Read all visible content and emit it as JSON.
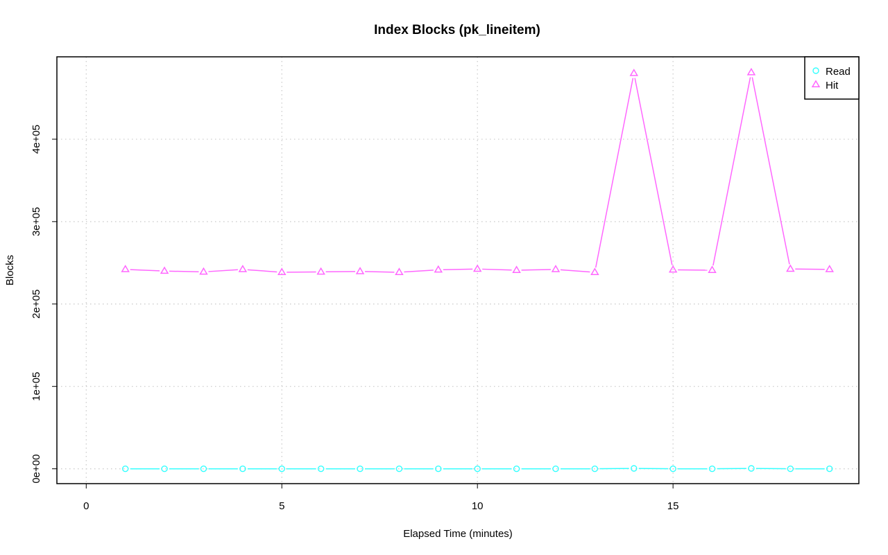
{
  "chart_data": {
    "type": "line",
    "title": "Index Blocks (pk_lineitem)",
    "xlabel": "Elapsed Time (minutes)",
    "ylabel": "Blocks",
    "xlim": [
      -0.75,
      19.75
    ],
    "ylim": [
      -18000,
      500000
    ],
    "x_ticks": [
      0,
      5,
      10,
      15
    ],
    "x_tick_labels": [
      "0",
      "5",
      "10",
      "15"
    ],
    "y_ticks": [
      0,
      100000,
      200000,
      300000,
      400000
    ],
    "y_tick_labels": [
      "0e+00",
      "1e+05",
      "2e+05",
      "3e+05",
      "4e+05"
    ],
    "grid": true,
    "legend_position": "top-right",
    "x": [
      1,
      2,
      3,
      4,
      5,
      6,
      7,
      8,
      9,
      10,
      11,
      12,
      13,
      14,
      15,
      16,
      17,
      18,
      19
    ],
    "series": [
      {
        "name": "Read",
        "color": "#33ffff",
        "marker": "circle",
        "values": [
          0,
          0,
          0,
          0,
          0,
          0,
          0,
          0,
          0,
          0,
          0,
          0,
          0,
          500,
          0,
          0,
          500,
          0,
          0
        ]
      },
      {
        "name": "Hit",
        "color": "#ff66ff",
        "marker": "triangle",
        "values": [
          242000,
          240000,
          239000,
          242000,
          238500,
          239000,
          239500,
          238500,
          241500,
          242500,
          241000,
          242000,
          238500,
          480000,
          241500,
          241000,
          481000,
          242500,
          242000
        ]
      }
    ]
  }
}
